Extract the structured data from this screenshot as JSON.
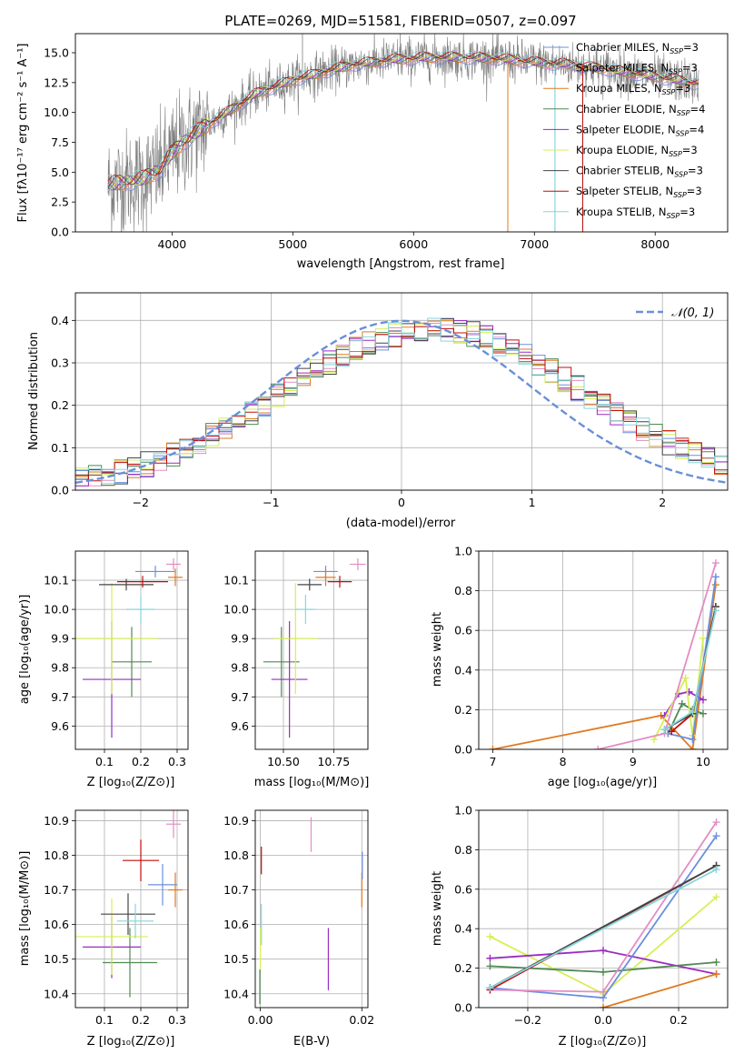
{
  "colors": {
    "Chabrier MILES": "#6b8fe0",
    "Salpeter MILES": "#e38dc4",
    "Kroupa MILES": "#e07a20",
    "Chabrier ELODIE": "#4f8a52",
    "Salpeter ELODIE": "#9a2cc2",
    "Kroupa ELODIE": "#d6ef55",
    "Chabrier STELIB": "#454545",
    "Salpeter STELIB": "#c00d0d",
    "Kroupa STELIB": "#86d6de",
    "normal": "#6a8fd8",
    "data_spectrum": "#808080"
  },
  "models": [
    {
      "key": "Chabrier MILES",
      "label": "Chabrier MILES, N",
      "sub": "SSP",
      "eq": "=3"
    },
    {
      "key": "Salpeter MILES",
      "label": "Salpeter MILES, N",
      "sub": "SSP",
      "eq": "=3"
    },
    {
      "key": "Kroupa MILES",
      "label": "Kroupa MILES, N",
      "sub": "SSP",
      "eq": "=3"
    },
    {
      "key": "Chabrier ELODIE",
      "label": "Chabrier ELODIE, N",
      "sub": "SSP",
      "eq": "=4"
    },
    {
      "key": "Salpeter ELODIE",
      "label": "Salpeter ELODIE, N",
      "sub": "SSP",
      "eq": "=4"
    },
    {
      "key": "Kroupa ELODIE",
      "label": "Kroupa ELODIE, N",
      "sub": "SSP",
      "eq": "=3"
    },
    {
      "key": "Chabrier STELIB",
      "label": "Chabrier STELIB, N",
      "sub": "SSP",
      "eq": "=3"
    },
    {
      "key": "Salpeter STELIB",
      "label": "Salpeter STELIB, N",
      "sub": "SSP",
      "eq": "=3"
    },
    {
      "key": "Kroupa STELIB",
      "label": "Kroupa STELIB, N",
      "sub": "SSP",
      "eq": "=3"
    }
  ],
  "chart_data": [
    {
      "id": "spectrum",
      "type": "line",
      "title": "PLATE=0269, MJD=51581, FIBERID=0507, z=0.097",
      "xlabel": "wavelength [Angstrom, rest frame]",
      "ylabel": "Flux [fλ10⁻¹⁷ erg cm⁻² s⁻¹ A⁻¹]",
      "xlim": [
        3200,
        8600
      ],
      "ylim": [
        0,
        16.6
      ],
      "xticks": [
        4000,
        5000,
        6000,
        7000,
        8000
      ],
      "yticks": [
        0.0,
        2.5,
        5.0,
        7.5,
        10.0,
        12.5,
        15.0
      ],
      "continuum_x": [
        3470,
        3600,
        3750,
        3900,
        4000,
        4100,
        4300,
        4500,
        4700,
        5000,
        5300,
        5500,
        5800,
        6100,
        6400,
        6700,
        7000,
        7300,
        7600,
        8000,
        8360
      ],
      "continuum_y": [
        3.9,
        4.2,
        4.4,
        5.2,
        6.6,
        7.6,
        9.0,
        10.3,
        11.6,
        12.7,
        13.5,
        14.0,
        14.4,
        14.6,
        14.6,
        14.5,
        14.2,
        14.0,
        13.6,
        13.0,
        12.4
      ],
      "data_spikes": [
        {
          "x": 5080,
          "y": 16.6
        },
        {
          "x": 5890,
          "y": 16.6
        },
        {
          "x": 6780,
          "y": 0
        },
        {
          "x": 7170,
          "y": 0
        },
        {
          "x": 7400,
          "y": 0
        }
      ],
      "legend": "top-right"
    },
    {
      "id": "residuals",
      "type": "line",
      "xlabel": "(data-model)/error",
      "ylabel": "Normed distribution",
      "xlim": [
        -2.5,
        2.5
      ],
      "ylim": [
        0,
        0.465
      ],
      "xticks": [
        -2,
        -1,
        0,
        1,
        2
      ],
      "xticklabels": [
        "−2",
        "−1",
        "0",
        "1",
        "2"
      ],
      "yticks": [
        0.0,
        0.1,
        0.2,
        0.3,
        0.4
      ],
      "series": [
        {
          "name": "𝒩(0, 1)",
          "dist": "normal",
          "mu": 0,
          "sigma": 1
        }
      ],
      "hist_bin_width": 0.1,
      "legend": "top-right"
    },
    {
      "id": "age_vs_Z",
      "type": "scatter",
      "xlabel": "Z [log₁₀(Z/Z⊙)]",
      "ylabel": "age  [log₁₀(age/yr)]",
      "xlim": [
        0.02,
        0.33
      ],
      "ylim": [
        9.52,
        10.2
      ],
      "xticks": [
        0.1,
        0.2,
        0.3
      ],
      "yticks": [
        9.6,
        9.7,
        9.8,
        9.9,
        10.0,
        10.1
      ],
      "points": [
        {
          "m": "Chabrier MILES",
          "x": 0.24,
          "xe": 0.055,
          "y": 10.13,
          "ye": 0.02
        },
        {
          "m": "Salpeter MILES",
          "x": 0.29,
          "xe": 0.02,
          "y": 10.155,
          "ye": 0.02
        },
        {
          "m": "Kroupa MILES",
          "x": 0.295,
          "xe": 0.02,
          "y": 10.11,
          "ye": 0.03
        },
        {
          "m": "Chabrier ELODIE",
          "x": 0.175,
          "xe": 0.055,
          "y": 9.82,
          "ye": 0.12
        },
        {
          "m": "Salpeter ELODIE",
          "x": 0.12,
          "xe": 0.08,
          "y": 9.76,
          "ye": 0.2
        },
        {
          "m": "Kroupa ELODIE",
          "x": 0.12,
          "xe": 0.125,
          "y": 9.9,
          "ye": 0.19
        },
        {
          "m": "Chabrier STELIB",
          "x": 0.16,
          "xe": 0.075,
          "y": 10.085,
          "ye": 0.02
        },
        {
          "m": "Salpeter STELIB",
          "x": 0.205,
          "xe": 0.07,
          "y": 10.095,
          "ye": 0.02
        },
        {
          "m": "Kroupa STELIB",
          "x": 0.2,
          "xe": 0.04,
          "y": 10.0,
          "ye": 0.05
        }
      ]
    },
    {
      "id": "age_vs_mass",
      "type": "scatter",
      "xlabel": "mass [log₁₀(M/M⊙)]",
      "xlim": [
        10.36,
        10.92
      ],
      "ylim": [
        9.52,
        10.2
      ],
      "xticks": [
        10.5,
        10.75
      ],
      "xticklabels": [
        "10.50",
        "10.75"
      ],
      "yticks": [
        9.6,
        9.7,
        9.8,
        9.9,
        10.0,
        10.1
      ],
      "points": [
        {
          "m": "Chabrier MILES",
          "x": 10.71,
          "xe": 0.06,
          "y": 10.13,
          "ye": 0.02
        },
        {
          "m": "Salpeter MILES",
          "x": 10.87,
          "xe": 0.04,
          "y": 10.155,
          "ye": 0.02
        },
        {
          "m": "Kroupa MILES",
          "x": 10.71,
          "xe": 0.05,
          "y": 10.11,
          "ye": 0.03
        },
        {
          "m": "Chabrier ELODIE",
          "x": 10.49,
          "xe": 0.09,
          "y": 9.82,
          "ye": 0.12
        },
        {
          "m": "Salpeter ELODIE",
          "x": 10.53,
          "xe": 0.09,
          "y": 9.76,
          "ye": 0.2
        },
        {
          "m": "Kroupa ELODIE",
          "x": 10.56,
          "xe": 0.11,
          "y": 9.9,
          "ye": 0.19
        },
        {
          "m": "Chabrier STELIB",
          "x": 10.63,
          "xe": 0.06,
          "y": 10.085,
          "ye": 0.02
        },
        {
          "m": "Salpeter STELIB",
          "x": 10.78,
          "xe": 0.06,
          "y": 10.095,
          "ye": 0.02
        },
        {
          "m": "Kroupa STELIB",
          "x": 10.61,
          "xe": 0.05,
          "y": 10.0,
          "ye": 0.05
        }
      ]
    },
    {
      "id": "weight_vs_age",
      "type": "line",
      "xlabel": "age  [log₁₀(age/yr)]",
      "ylabel": "mass weight",
      "xlim": [
        6.8,
        10.35
      ],
      "ylim": [
        0,
        1.0
      ],
      "xticks": [
        7,
        8,
        9,
        10
      ],
      "yticks": [
        0.0,
        0.2,
        0.4,
        0.6,
        0.8,
        1.0
      ],
      "series": [
        {
          "m": "Kroupa MILES",
          "x": [
            7.0,
            9.4,
            9.85,
            10.18
          ],
          "y": [
            0.0,
            0.17,
            0.0,
            0.83
          ]
        },
        {
          "m": "Salpeter ELODIE",
          "x": [
            9.45,
            9.65,
            9.8,
            10.0
          ],
          "y": [
            0.17,
            0.28,
            0.29,
            0.25
          ]
        },
        {
          "m": "Chabrier ELODIE",
          "x": [
            9.5,
            9.7,
            9.85,
            10.0
          ],
          "y": [
            0.08,
            0.23,
            0.2,
            0.18
          ]
        },
        {
          "m": "Kroupa ELODIE",
          "x": [
            9.3,
            9.75,
            9.85,
            10.0
          ],
          "y": [
            0.05,
            0.36,
            0.07,
            0.56
          ]
        },
        {
          "m": "Chabrier MILES",
          "x": [
            9.5,
            9.85,
            10.18
          ],
          "y": [
            0.08,
            0.05,
            0.87
          ]
        },
        {
          "m": "Salpeter MILES",
          "x": [
            8.5,
            9.45,
            10.18
          ],
          "y": [
            0.0,
            0.08,
            0.94
          ]
        },
        {
          "m": "Salpeter STELIB",
          "x": [
            9.55,
            9.85,
            10.18
          ],
          "y": [
            0.09,
            0.18,
            0.72
          ]
        },
        {
          "m": "Chabrier STELIB",
          "x": [
            9.45,
            9.85,
            10.18
          ],
          "y": [
            0.1,
            0.18,
            0.72
          ]
        },
        {
          "m": "Kroupa STELIB",
          "x": [
            9.45,
            9.85,
            10.18
          ],
          "y": [
            0.1,
            0.19,
            0.7
          ]
        }
      ]
    },
    {
      "id": "mass_vs_Z",
      "type": "scatter",
      "xlabel": "Z [log₁₀(Z/Z⊙)]",
      "ylabel": "mass [log₁₀(M/M⊙)]",
      "xlim": [
        0.02,
        0.33
      ],
      "ylim": [
        10.36,
        10.93
      ],
      "xticks": [
        0.1,
        0.2,
        0.3
      ],
      "yticks": [
        10.4,
        10.5,
        10.6,
        10.7,
        10.8,
        10.9
      ],
      "points": [
        {
          "m": "Chabrier MILES",
          "x": 0.26,
          "xe": 0.04,
          "y": 10.715,
          "ye": 0.06
        },
        {
          "m": "Salpeter MILES",
          "x": 0.29,
          "xe": 0.02,
          "y": 10.89,
          "ye": 0.04
        },
        {
          "m": "Kroupa MILES",
          "x": 0.295,
          "xe": 0.02,
          "y": 10.7,
          "ye": 0.05
        },
        {
          "m": "Chabrier ELODIE",
          "x": 0.17,
          "xe": 0.075,
          "y": 10.49,
          "ye": 0.1
        },
        {
          "m": "Salpeter ELODIE",
          "x": 0.12,
          "xe": 0.08,
          "y": 10.535,
          "ye": 0.09
        },
        {
          "m": "Kroupa ELODIE",
          "x": 0.12,
          "xe": 0.1,
          "y": 10.565,
          "ye": 0.11
        },
        {
          "m": "Chabrier STELIB",
          "x": 0.165,
          "xe": 0.075,
          "y": 10.63,
          "ye": 0.06
        },
        {
          "m": "Salpeter STELIB",
          "x": 0.2,
          "xe": 0.05,
          "y": 10.785,
          "ye": 0.06
        },
        {
          "m": "Kroupa STELIB",
          "x": 0.185,
          "xe": 0.05,
          "y": 10.61,
          "ye": 0.05
        }
      ]
    },
    {
      "id": "mass_vs_EBV",
      "type": "scatter",
      "xlabel": "E(B-V)",
      "xlim": [
        -0.001,
        0.0212
      ],
      "ylim": [
        10.36,
        10.93
      ],
      "xticks": [
        0.0,
        0.02
      ],
      "xticklabels": [
        "0.00",
        "0.02"
      ],
      "yticks": [
        10.4,
        10.5,
        10.6,
        10.7,
        10.8,
        10.9
      ],
      "points": [
        {
          "m": "Salpeter MILES",
          "x": 0.01,
          "y": 10.86,
          "ye": 0.05
        },
        {
          "m": "Kroupa MILES",
          "x": 0.02,
          "y": 10.7,
          "ye": 0.05
        },
        {
          "m": "Chabrier MILES",
          "x": 0.0201,
          "y": 10.77,
          "ye": 0.04
        },
        {
          "m": "Salpeter STELIB",
          "x": 0.0002,
          "y": 10.785,
          "ye": 0.04
        },
        {
          "m": "Kroupa STELIB",
          "x": 0.0002,
          "y": 10.6,
          "ye": 0.06
        },
        {
          "m": "Kroupa ELODIE",
          "x": 0.0,
          "y": 10.53,
          "ye": 0.06
        },
        {
          "m": "Chabrier ELODIE",
          "x": -0.0001,
          "y": 10.42,
          "ye": 0.05
        },
        {
          "m": "Salpeter ELODIE",
          "x": 0.0134,
          "y": 10.5,
          "ye": 0.09
        }
      ]
    },
    {
      "id": "weight_vs_Z",
      "type": "line",
      "xlabel": "Z [log₁₀(Z/Z⊙)]",
      "ylabel": "mass weight",
      "xlim": [
        -0.33,
        0.33
      ],
      "ylim": [
        0,
        1.0
      ],
      "xticks": [
        -0.2,
        0.0,
        0.2
      ],
      "xticklabels": [
        "−0.2",
        "0.0",
        "0.2"
      ],
      "yticks": [
        0.0,
        0.2,
        0.4,
        0.6,
        0.8,
        1.0
      ],
      "series": [
        {
          "m": "Kroupa ELODIE",
          "x": [
            -0.3,
            0.0,
            0.3
          ],
          "y": [
            0.36,
            0.07,
            0.56
          ]
        },
        {
          "m": "Salpeter ELODIE",
          "x": [
            -0.3,
            0.0,
            0.3
          ],
          "y": [
            0.25,
            0.29,
            0.17
          ]
        },
        {
          "m": "Chabrier ELODIE",
          "x": [
            -0.3,
            0.0,
            0.3
          ],
          "y": [
            0.21,
            0.18,
            0.23
          ]
        },
        {
          "m": "Kroupa MILES",
          "x": [
            0.0,
            0.3
          ],
          "y": [
            0.0,
            0.17
          ]
        },
        {
          "m": "Chabrier MILES",
          "x": [
            -0.3,
            0.0,
            0.3
          ],
          "y": [
            0.1,
            0.05,
            0.87
          ]
        },
        {
          "m": "Salpeter MILES",
          "x": [
            -0.3,
            0.0,
            0.3
          ],
          "y": [
            0.09,
            0.08,
            0.94
          ]
        },
        {
          "m": "Salpeter STELIB",
          "x": [
            -0.3,
            0.3
          ],
          "y": [
            0.09,
            0.72
          ]
        },
        {
          "m": "Chabrier STELIB",
          "x": [
            -0.3,
            0.3
          ],
          "y": [
            0.1,
            0.72
          ]
        },
        {
          "m": "Kroupa STELIB",
          "x": [
            -0.3,
            0.3
          ],
          "y": [
            0.1,
            0.7
          ]
        }
      ]
    }
  ]
}
